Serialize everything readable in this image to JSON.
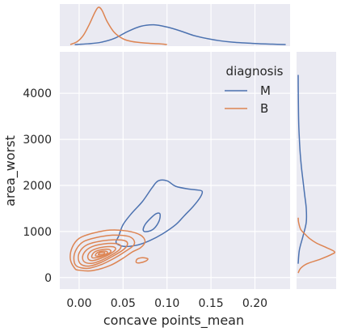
{
  "chart_data": {
    "type": "kde-joint",
    "xlabel": "concave points_mean",
    "ylabel": "area_worst",
    "xlim": [
      -0.022,
      0.24
    ],
    "ylim": [
      -250,
      4900
    ],
    "x_ticks": [
      0.0,
      0.05,
      0.1,
      0.15,
      0.2
    ],
    "x_tick_labels": [
      "0.00",
      "0.05",
      "0.10",
      "0.15",
      "0.20"
    ],
    "y_ticks": [
      0,
      1000,
      2000,
      3000,
      4000
    ],
    "y_tick_labels": [
      "0",
      "1000",
      "2000",
      "3000",
      "4000"
    ],
    "grid": true,
    "legend": {
      "title": "diagnosis",
      "placement": "top-right"
    },
    "series": [
      {
        "name": "M",
        "color": "#4c72b0",
        "x_density": [
          [
            -0.005,
            0.0
          ],
          [
            0.01,
            0.02
          ],
          [
            0.025,
            0.06
          ],
          [
            0.04,
            0.16
          ],
          [
            0.055,
            0.34
          ],
          [
            0.07,
            0.48
          ],
          [
            0.085,
            0.52
          ],
          [
            0.1,
            0.46
          ],
          [
            0.115,
            0.36
          ],
          [
            0.13,
            0.24
          ],
          [
            0.145,
            0.16
          ],
          [
            0.16,
            0.1
          ],
          [
            0.175,
            0.06
          ],
          [
            0.19,
            0.04
          ],
          [
            0.205,
            0.02
          ],
          [
            0.22,
            0.01
          ],
          [
            0.235,
            0.0
          ]
        ],
        "y_density": [
          [
            300,
            0.0
          ],
          [
            600,
            0.03
          ],
          [
            900,
            0.12
          ],
          [
            1200,
            0.2
          ],
          [
            1500,
            0.2
          ],
          [
            1800,
            0.16
          ],
          [
            2100,
            0.12
          ],
          [
            2400,
            0.08
          ],
          [
            2700,
            0.05
          ],
          [
            3000,
            0.03
          ],
          [
            3300,
            0.015
          ],
          [
            3600,
            0.008
          ],
          [
            4000,
            0.003
          ],
          [
            4400,
            0.0
          ]
        ],
        "contours": [
          [
            [
              0.045,
              900
            ],
            [
              0.05,
              1150
            ],
            [
              0.06,
              1400
            ],
            [
              0.072,
              1650
            ],
            [
              0.083,
              1950
            ],
            [
              0.09,
              2100
            ],
            [
              0.1,
              2100
            ],
            [
              0.11,
              1980
            ],
            [
              0.125,
              1920
            ],
            [
              0.135,
              1900
            ],
            [
              0.14,
              1870
            ],
            [
              0.138,
              1750
            ],
            [
              0.13,
              1550
            ],
            [
              0.12,
              1350
            ],
            [
              0.11,
              1150
            ],
            [
              0.095,
              950
            ],
            [
              0.08,
              800
            ],
            [
              0.065,
              700
            ],
            [
              0.05,
              680
            ],
            [
              0.042,
              760
            ],
            [
              0.045,
              900
            ]
          ],
          [
            [
              0.073,
              1020
            ],
            [
              0.075,
              1150
            ],
            [
              0.082,
              1300
            ],
            [
              0.088,
              1390
            ],
            [
              0.092,
              1380
            ],
            [
              0.091,
              1230
            ],
            [
              0.085,
              1060
            ],
            [
              0.078,
              1000
            ],
            [
              0.073,
              1020
            ]
          ]
        ]
      },
      {
        "name": "B",
        "color": "#dd8452",
        "x_density": [
          [
            -0.01,
            0.0
          ],
          [
            -0.002,
            0.08
          ],
          [
            0.005,
            0.25
          ],
          [
            0.012,
            0.55
          ],
          [
            0.018,
            0.85
          ],
          [
            0.022,
            0.98
          ],
          [
            0.026,
            0.9
          ],
          [
            0.032,
            0.6
          ],
          [
            0.04,
            0.32
          ],
          [
            0.05,
            0.15
          ],
          [
            0.06,
            0.08
          ],
          [
            0.075,
            0.04
          ],
          [
            0.09,
            0.02
          ],
          [
            0.1,
            0.0
          ]
        ],
        "y_density": [
          [
            100,
            0.0
          ],
          [
            200,
            0.06
          ],
          [
            300,
            0.22
          ],
          [
            400,
            0.55
          ],
          [
            500,
            0.82
          ],
          [
            560,
            0.9
          ],
          [
            650,
            0.7
          ],
          [
            750,
            0.45
          ],
          [
            850,
            0.28
          ],
          [
            950,
            0.16
          ],
          [
            1050,
            0.06
          ],
          [
            1200,
            0.01
          ],
          [
            1300,
            0.0
          ]
        ],
        "contours": [
          [
            [
              -0.005,
              200
            ],
            [
              -0.01,
              400
            ],
            [
              -0.008,
              650
            ],
            [
              0.0,
              850
            ],
            [
              0.015,
              960
            ],
            [
              0.035,
              1030
            ],
            [
              0.055,
              1010
            ],
            [
              0.07,
              920
            ],
            [
              0.075,
              780
            ],
            [
              0.07,
              650
            ],
            [
              0.06,
              550
            ],
            [
              0.05,
              420
            ],
            [
              0.035,
              260
            ],
            [
              0.015,
              150
            ],
            [
              0.0,
              160
            ],
            [
              -0.005,
              200
            ]
          ],
          [
            [
              -0.003,
              250
            ],
            [
              -0.006,
              420
            ],
            [
              -0.003,
              620
            ],
            [
              0.005,
              780
            ],
            [
              0.02,
              870
            ],
            [
              0.038,
              920
            ],
            [
              0.055,
              900
            ],
            [
              0.062,
              820
            ],
            [
              0.062,
              700
            ],
            [
              0.052,
              560
            ],
            [
              0.04,
              420
            ],
            [
              0.025,
              280
            ],
            [
              0.01,
              200
            ],
            [
              -0.003,
              250
            ]
          ],
          [
            [
              0.002,
              290
            ],
            [
              -0.001,
              440
            ],
            [
              0.002,
              600
            ],
            [
              0.01,
              720
            ],
            [
              0.024,
              790
            ],
            [
              0.04,
              820
            ],
            [
              0.052,
              800
            ],
            [
              0.055,
              720
            ],
            [
              0.05,
              600
            ],
            [
              0.038,
              460
            ],
            [
              0.025,
              330
            ],
            [
              0.012,
              250
            ],
            [
              0.002,
              290
            ]
          ],
          [
            [
              0.006,
              340
            ],
            [
              0.004,
              460
            ],
            [
              0.008,
              590
            ],
            [
              0.016,
              680
            ],
            [
              0.028,
              730
            ],
            [
              0.04,
              740
            ],
            [
              0.047,
              700
            ],
            [
              0.046,
              610
            ],
            [
              0.037,
              490
            ],
            [
              0.026,
              380
            ],
            [
              0.015,
              310
            ],
            [
              0.006,
              340
            ]
          ],
          [
            [
              0.011,
              390
            ],
            [
              0.01,
              480
            ],
            [
              0.014,
              580
            ],
            [
              0.022,
              640
            ],
            [
              0.032,
              670
            ],
            [
              0.04,
              660
            ],
            [
              0.041,
              600
            ],
            [
              0.034,
              500
            ],
            [
              0.025,
              420
            ],
            [
              0.016,
              370
            ],
            [
              0.011,
              390
            ]
          ],
          [
            [
              0.015,
              430
            ],
            [
              0.015,
              500
            ],
            [
              0.019,
              570
            ],
            [
              0.027,
              610
            ],
            [
              0.034,
              610
            ],
            [
              0.036,
              560
            ],
            [
              0.03,
              490
            ],
            [
              0.022,
              440
            ],
            [
              0.015,
              430
            ]
          ],
          [
            [
              0.019,
              470
            ],
            [
              0.02,
              530
            ],
            [
              0.025,
              570
            ],
            [
              0.031,
              570
            ],
            [
              0.032,
              530
            ],
            [
              0.027,
              480
            ],
            [
              0.019,
              470
            ]
          ],
          [
            [
              0.022,
              500
            ],
            [
              0.024,
              540
            ],
            [
              0.029,
              545
            ],
            [
              0.028,
              510
            ],
            [
              0.022,
              500
            ]
          ],
          [
            [
              0.065,
              330
            ],
            [
              0.066,
              400
            ],
            [
              0.072,
              430
            ],
            [
              0.078,
              410
            ],
            [
              0.076,
              360
            ],
            [
              0.069,
              320
            ],
            [
              0.065,
              330
            ]
          ]
        ]
      }
    ]
  }
}
